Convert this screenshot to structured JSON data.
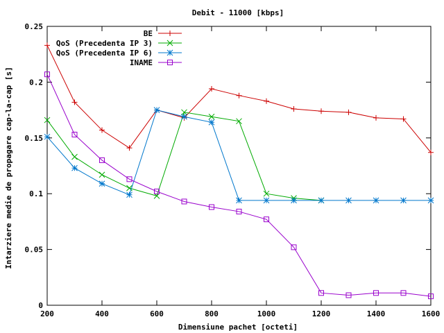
{
  "chart_data": {
    "type": "line",
    "title": "Debit - 11000 [kbps]",
    "xlabel": "Dimensiune pachet [octeti]",
    "ylabel": "Intarziere medie de propagare cap-la-cap [s]",
    "xlim": [
      200,
      1600
    ],
    "ylim": [
      0,
      0.25
    ],
    "x_ticks": [
      "200",
      "400",
      "600",
      "800",
      "1000",
      "1200",
      "1400",
      "1600"
    ],
    "y_ticks": [
      "0",
      "0.05",
      "0.1",
      "0.15",
      "0.2",
      "0.25"
    ],
    "legend_position": "top-right",
    "grid": false,
    "series": [
      {
        "name": "BE",
        "color": "#cc0000",
        "marker": "plus",
        "x": [
          200,
          300,
          400,
          500,
          600,
          700,
          800,
          900,
          1000,
          1100,
          1200,
          1300,
          1400,
          1500,
          1600
        ],
        "values": [
          0.233,
          0.182,
          0.157,
          0.141,
          0.175,
          0.168,
          0.194,
          0.188,
          0.183,
          0.176,
          0.174,
          0.173,
          0.168,
          0.167,
          0.137
        ]
      },
      {
        "name": "QoS (Precedenta IP 3)",
        "color": "#00aa00",
        "marker": "cross",
        "x": [
          200,
          300,
          400,
          500,
          600,
          700,
          800,
          900,
          1000,
          1100,
          1200
        ],
        "values": [
          0.166,
          0.133,
          0.117,
          0.105,
          0.098,
          0.173,
          0.169,
          0.165,
          0.1,
          0.096,
          0.094
        ]
      },
      {
        "name": "QoS (Precedenta IP 6)",
        "color": "#0077cc",
        "marker": "star",
        "x": [
          200,
          300,
          400,
          500,
          600,
          700,
          800,
          900,
          1000,
          1100,
          1200,
          1300,
          1400,
          1500,
          1600
        ],
        "values": [
          0.151,
          0.123,
          0.109,
          0.099,
          0.175,
          0.169,
          0.164,
          0.094,
          0.094,
          0.094,
          0.094,
          0.094,
          0.094,
          0.094,
          0.094
        ]
      },
      {
        "name": "INAME",
        "color": "#9900cc",
        "marker": "square",
        "x": [
          200,
          300,
          400,
          500,
          600,
          700,
          800,
          900,
          1000,
          1100,
          1200,
          1300,
          1400,
          1500,
          1600
        ],
        "values": [
          0.207,
          0.153,
          0.13,
          0.113,
          0.102,
          0.093,
          0.088,
          0.084,
          0.077,
          0.052,
          0.011,
          0.009,
          0.011,
          0.011,
          0.008
        ]
      }
    ]
  }
}
